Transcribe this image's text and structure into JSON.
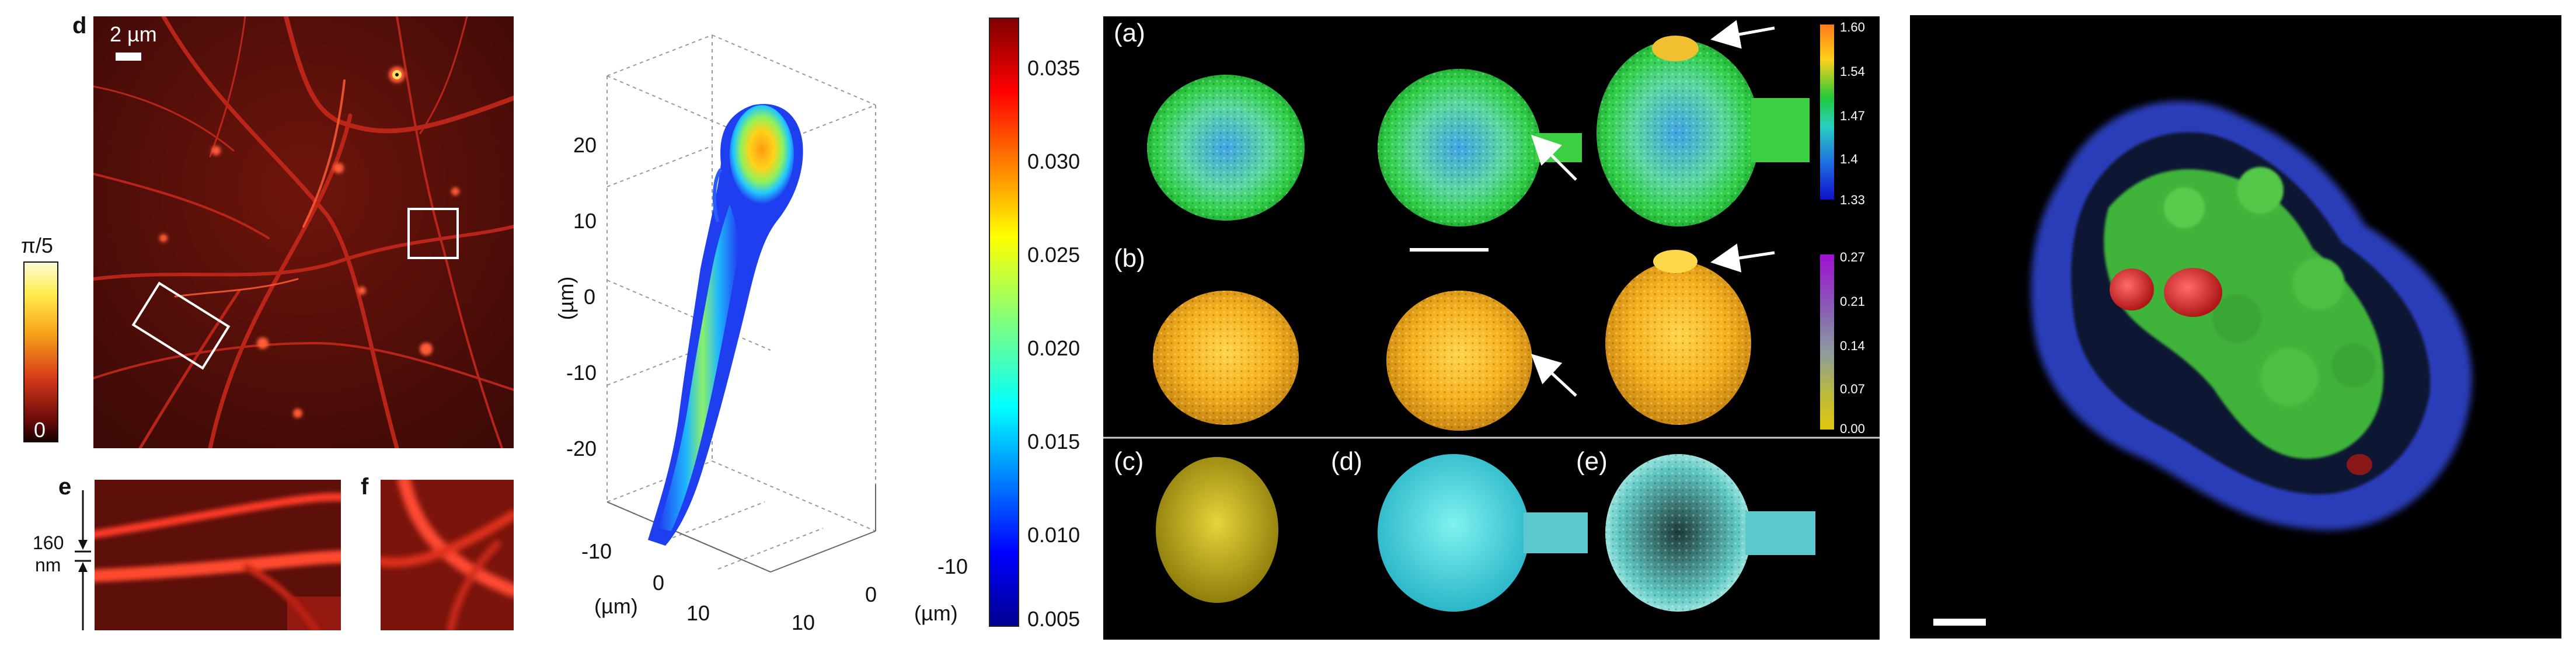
{
  "panel1": {
    "label_d": "d",
    "scale_text": "2 µm",
    "cbar_top": "π/5",
    "cbar_bottom": "0",
    "label_e": "e",
    "label_f": "f",
    "dim_value": "160",
    "dim_unit": "nm",
    "colors": {
      "background": "#4a0d08",
      "signal": "#e8311f",
      "bright": "#ffe15a"
    }
  },
  "panel2": {
    "z_ticks": [
      "20",
      "10",
      "0",
      "-10",
      "-20"
    ],
    "z_unit": "(µm)",
    "x_ticks": [
      "-10",
      "0",
      "10"
    ],
    "x_unit": "(µm)",
    "y_ticks": [
      "-10",
      "0",
      "10"
    ],
    "y_unit": "(µm)",
    "colorbar_ticks": [
      "0.035",
      "0.030",
      "0.025",
      "0.020",
      "0.015",
      "0.010",
      "0.005"
    ],
    "colormap": "jet"
  },
  "panel3": {
    "label_a": "(a)",
    "label_b": "(b)",
    "label_c": "(c)",
    "label_d": "(d)",
    "label_e": "(e)",
    "cbar_a_ticks": [
      "1.60",
      "1.54",
      "1.47",
      "1.4",
      "1.33"
    ],
    "cbar_b_ticks": [
      "0.27",
      "0.21",
      "0.14",
      "0.07",
      "0.00"
    ],
    "colors": {
      "background": "#000000",
      "arrow": "#ffffff"
    }
  },
  "panel4": {
    "colors": {
      "background": "#000000",
      "membrane": "#3a49c8",
      "cytoplasm": "#3fb33a",
      "nuclei": "#d42a2a"
    }
  }
}
